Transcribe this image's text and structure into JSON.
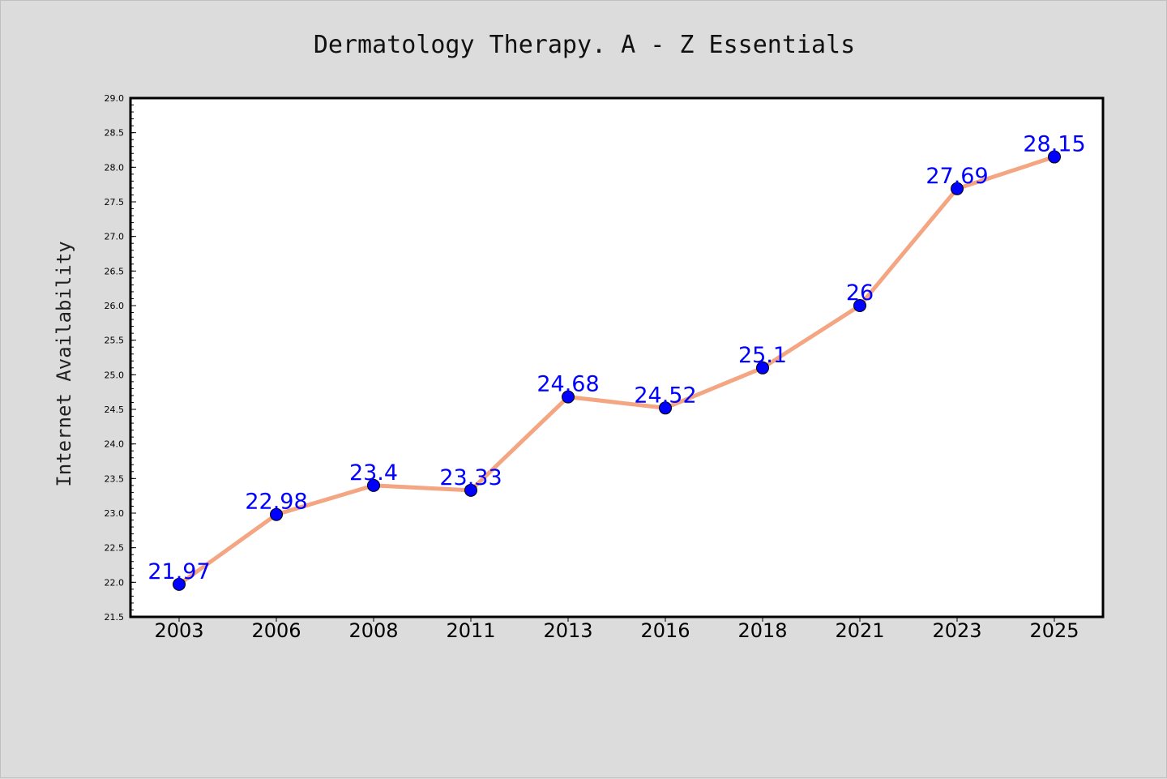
{
  "chart_data": {
    "type": "line",
    "title": "Dermatology Therapy. A - Z Essentials",
    "xlabel": "",
    "ylabel": "Internet Availability",
    "categories": [
      "2003",
      "2006",
      "2008",
      "2011",
      "2013",
      "2016",
      "2018",
      "2021",
      "2023",
      "2025"
    ],
    "series": [
      {
        "values": [
          21.97,
          22.98,
          23.4,
          23.33,
          24.68,
          24.52,
          25.1,
          26,
          27.69,
          28.15
        ],
        "labels": [
          "21.97",
          "22.98",
          "23.4",
          "23.33",
          "24.68",
          "24.52",
          "25.1",
          "26",
          "27.69",
          "28.15"
        ],
        "line_color": "#f4a582",
        "marker_color": "#0000ff"
      }
    ],
    "ylim": [
      21.5,
      29.0
    ],
    "yticks": [
      "21.5",
      "22.0",
      "22.5",
      "23.0",
      "23.5",
      "24.0",
      "24.5",
      "25.0",
      "25.5",
      "26.0",
      "26.5",
      "27.0",
      "27.5",
      "28.0",
      "28.5",
      "29.0"
    ],
    "grid": false,
    "legend": false,
    "colors": {
      "figure_background": "#dcdcdc",
      "plot_background": "#ffffff",
      "axes_border": "#000000",
      "data_label": "#0000ff"
    }
  }
}
